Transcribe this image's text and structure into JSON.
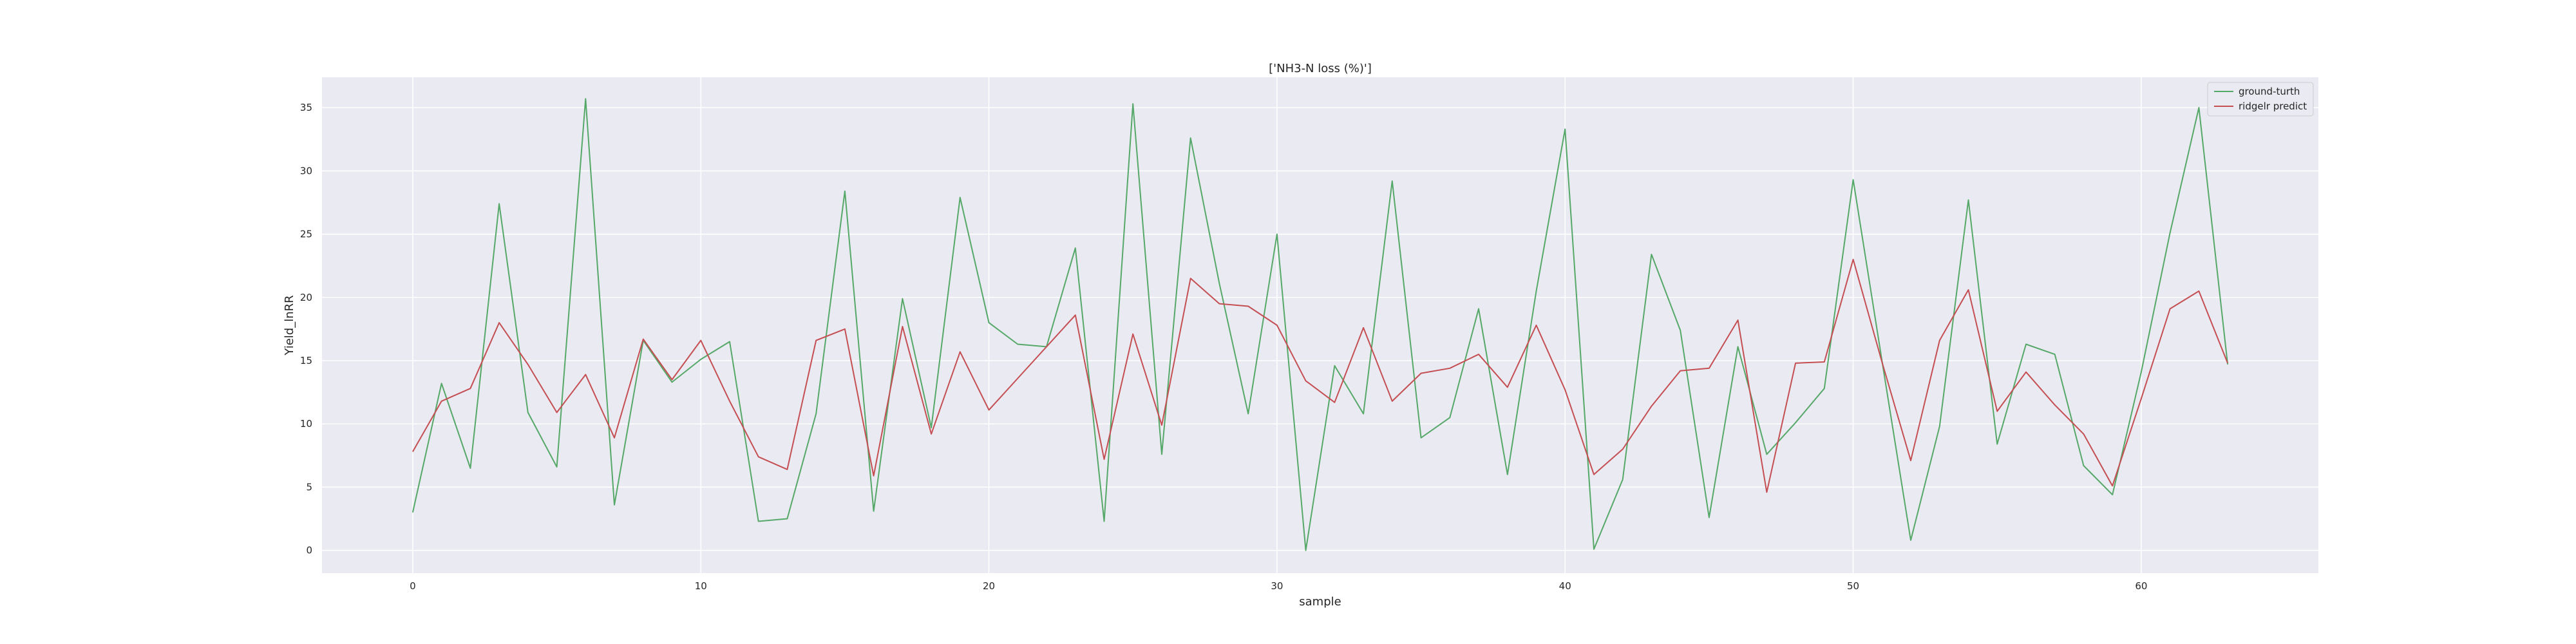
{
  "chart_data": {
    "type": "line",
    "title": "['NH3-N loss (%)']",
    "xlabel": "sample",
    "ylabel": "Yield_lnRR",
    "xlim": [
      -3.15,
      66.15
    ],
    "ylim": [
      -1.8,
      37.4
    ],
    "xticks": [
      0,
      10,
      20,
      30,
      40,
      50,
      60
    ],
    "yticks": [
      0,
      5,
      10,
      15,
      20,
      25,
      30,
      35
    ],
    "grid": true,
    "legend_position": "top-right",
    "x": [
      0,
      1,
      2,
      3,
      4,
      5,
      6,
      7,
      8,
      9,
      10,
      11,
      12,
      13,
      14,
      15,
      16,
      17,
      18,
      19,
      20,
      21,
      22,
      23,
      24,
      25,
      26,
      27,
      28,
      29,
      30,
      31,
      32,
      33,
      34,
      35,
      36,
      37,
      38,
      39,
      40,
      41,
      42,
      43,
      44,
      45,
      46,
      47,
      48,
      49,
      50,
      51,
      52,
      53,
      54,
      55,
      56,
      57,
      58,
      59,
      60,
      61,
      62,
      63
    ],
    "series": [
      {
        "name": "ground-turth",
        "color": "#55a868",
        "values": [
          3.0,
          13.2,
          6.5,
          27.4,
          10.9,
          6.6,
          35.7,
          3.6,
          16.6,
          13.3,
          15.1,
          16.5,
          2.3,
          2.5,
          10.8,
          28.4,
          3.1,
          19.9,
          9.7,
          27.9,
          18.0,
          16.3,
          16.1,
          23.9,
          2.3,
          35.3,
          7.6,
          32.6,
          21.1,
          10.8,
          25.0,
          0.0,
          14.6,
          10.8,
          29.2,
          8.9,
          10.5,
          19.1,
          6.0,
          20.5,
          33.3,
          0.1,
          5.6,
          23.4,
          17.4,
          2.6,
          16.1,
          7.6,
          10.1,
          12.8,
          29.3,
          15.0,
          0.8,
          9.8,
          27.7,
          8.4,
          16.3,
          15.5,
          6.7,
          4.4,
          14.1,
          25.1,
          35.0,
          14.7
        ]
      },
      {
        "name": "ridgelr predict",
        "color": "#c44e52",
        "values": [
          7.8,
          11.8,
          12.8,
          18.0,
          14.7,
          10.9,
          13.9,
          8.9,
          16.7,
          13.5,
          16.6,
          11.8,
          7.4,
          6.4,
          16.6,
          17.5,
          5.9,
          17.7,
          9.2,
          15.7,
          11.1,
          13.6,
          16.1,
          18.6,
          7.2,
          17.1,
          9.9,
          21.5,
          19.5,
          19.3,
          17.8,
          13.4,
          11.7,
          17.6,
          11.8,
          14.0,
          14.4,
          15.5,
          12.9,
          17.8,
          12.7,
          6.0,
          8.0,
          11.4,
          14.2,
          14.4,
          18.2,
          4.6,
          14.8,
          14.9,
          23.0,
          14.9,
          7.1,
          16.6,
          20.6,
          11.0,
          14.1,
          11.5,
          9.2,
          5.1,
          12.0,
          19.1,
          20.5,
          14.8
        ]
      }
    ]
  }
}
